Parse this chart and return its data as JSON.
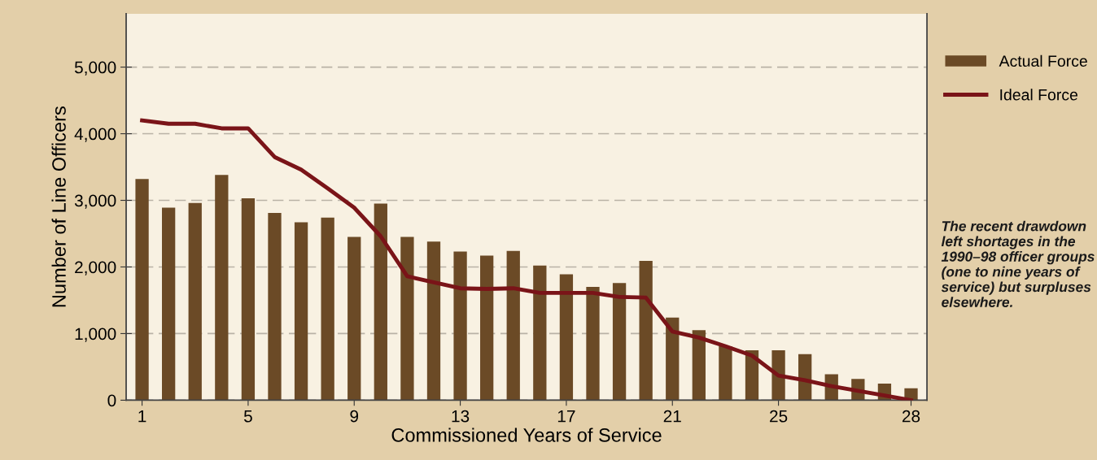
{
  "chart_data": {
    "type": "bar",
    "xlabel": "Commissioned Years of Service",
    "ylabel": "Number of Line Officers",
    "categories": [
      "1",
      null,
      null,
      null,
      "5",
      null,
      null,
      null,
      "9",
      null,
      null,
      null,
      "13",
      null,
      null,
      null,
      "17",
      null,
      null,
      null,
      "21",
      null,
      null,
      null,
      "25",
      null,
      null,
      null,
      null,
      "28"
    ],
    "series": [
      {
        "name": "Actual Force",
        "color": "#6b4a26",
        "values": [
          3320,
          2890,
          2960,
          3380,
          3030,
          2810,
          2670,
          2740,
          2450,
          2950,
          2450,
          2380,
          2230,
          2170,
          2240,
          2020,
          1890,
          1700,
          1760,
          2090,
          1240,
          1050,
          810,
          750,
          750,
          690,
          390,
          320,
          250,
          180
        ]
      },
      {
        "name": "Ideal Force",
        "type": "line",
        "color": "#7a1418",
        "values": [
          4200,
          4150,
          4150,
          4080,
          4080,
          3650,
          3460,
          3180,
          2890,
          2460,
          1860,
          1770,
          1680,
          1670,
          1680,
          1610,
          1610,
          1610,
          1550,
          1540,
          1030,
          940,
          810,
          670,
          370,
          300,
          210,
          140,
          70,
          0
        ]
      }
    ],
    "ylim": [
      0,
      5800
    ],
    "yticks": [
      {
        "value": 0,
        "label": "0"
      },
      {
        "value": 1000,
        "label": "1,000"
      },
      {
        "value": 2000,
        "label": "2,000"
      },
      {
        "value": 3000,
        "label": "3,000"
      },
      {
        "value": 4000,
        "label": "4,000"
      },
      {
        "value": 5000,
        "label": "5,000"
      }
    ],
    "grid": "y",
    "legend": "right",
    "marker": "none",
    "line_style": "solid",
    "annotations": [
      "The recent drawdown left shortages in the 1990–98 officer groups (one to nine years of service) but surpluses elsewhere."
    ]
  }
}
